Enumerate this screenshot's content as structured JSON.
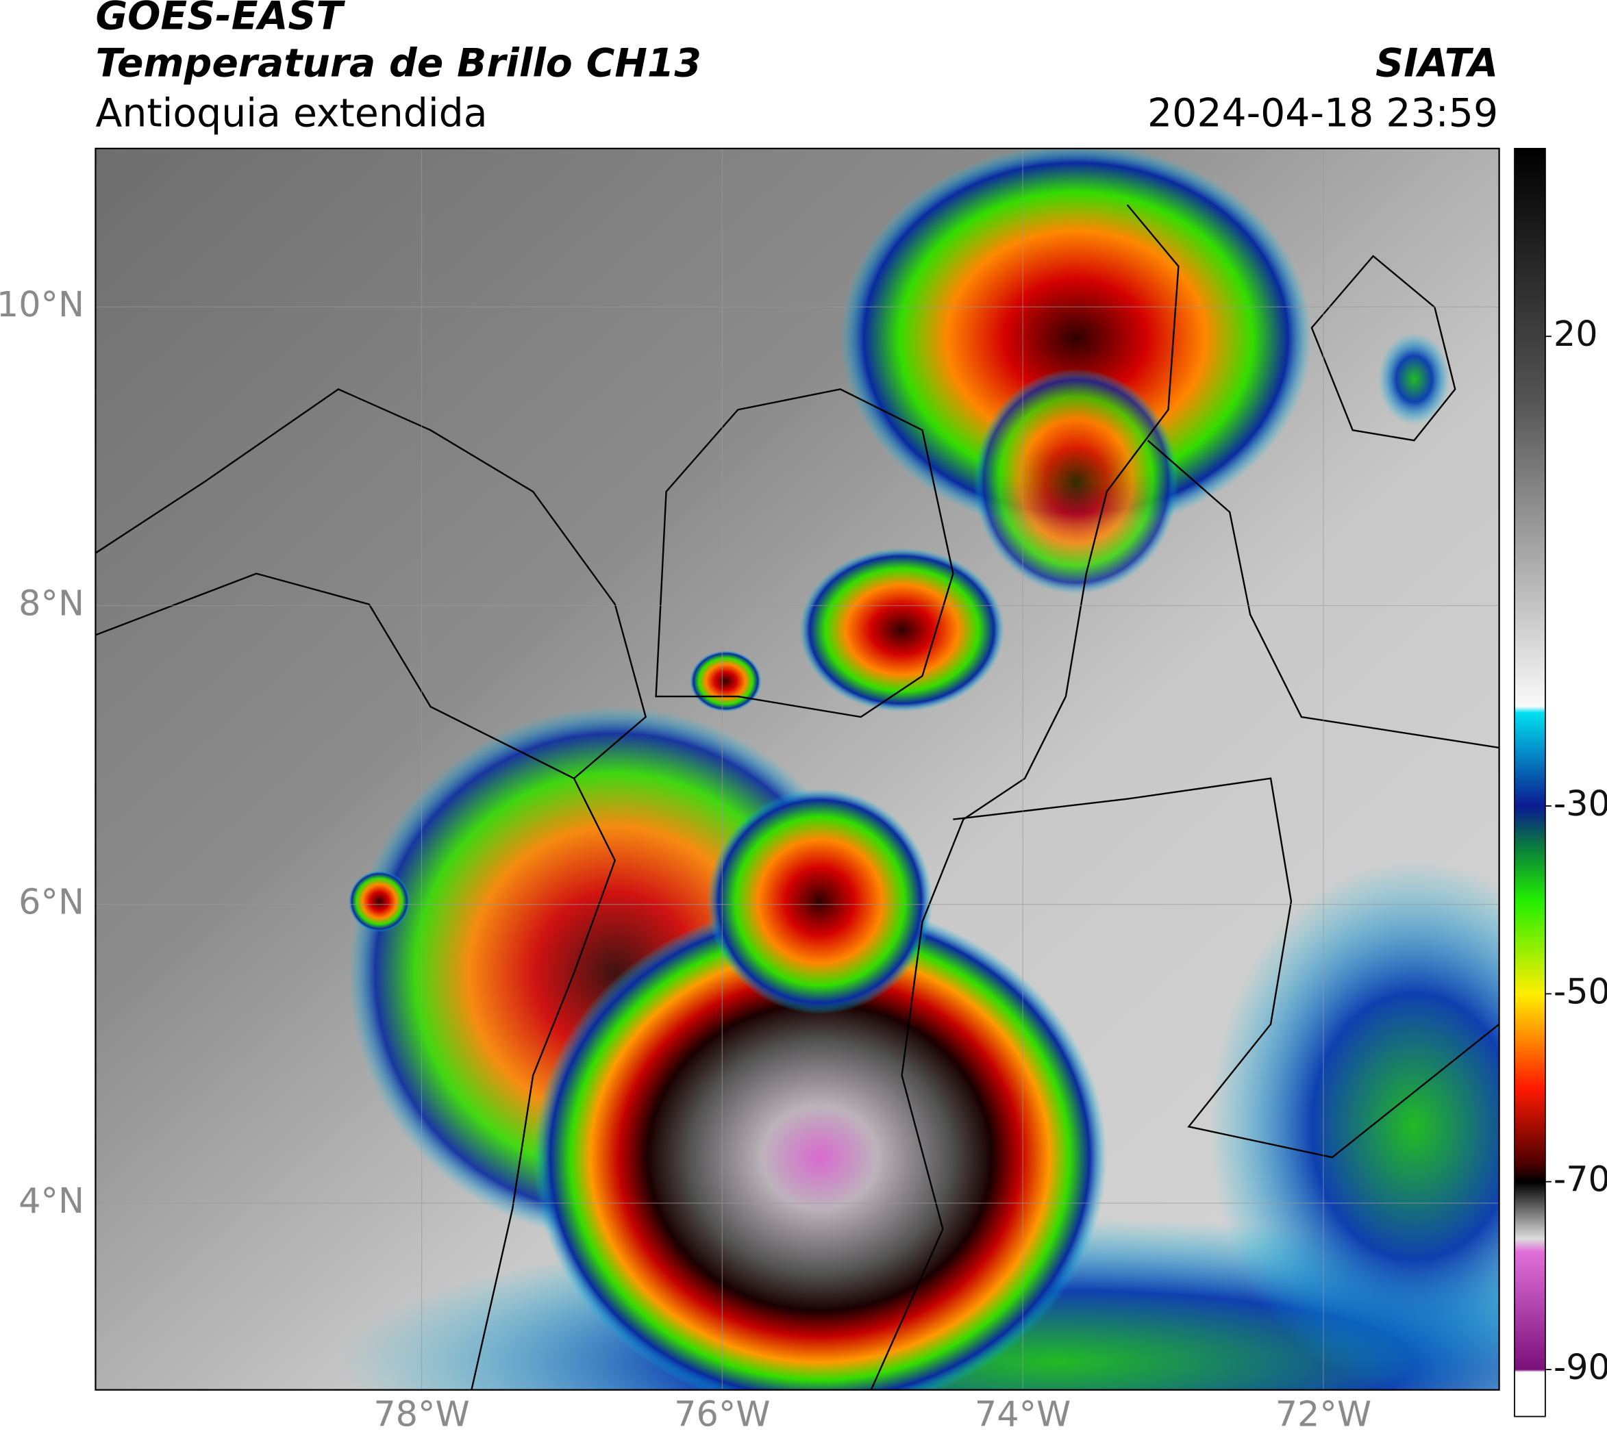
{
  "header": {
    "title": "GOES-EAST",
    "subtitle": "Temperatura de Brillo CH13",
    "region": "Antioquia extendida",
    "source": "SIATA",
    "datetime": "2024-04-18 23:59"
  },
  "map": {
    "xlim": [
      -80.17,
      -70.83
    ],
    "ylim": [
      2.75,
      11.06
    ],
    "grid": true,
    "xticks": [
      {
        "value": -78,
        "label": "78°W"
      },
      {
        "value": -76,
        "label": "76°W"
      },
      {
        "value": -74,
        "label": "74°W"
      },
      {
        "value": -72,
        "label": "72°W"
      }
    ],
    "yticks": [
      {
        "value": 4,
        "label": "4°N"
      },
      {
        "value": 6,
        "label": "6°N"
      },
      {
        "value": 8,
        "label": "8°N"
      },
      {
        "value": 10,
        "label": "10°N"
      }
    ]
  },
  "colorbar": {
    "lim": [
      -95,
      40
    ],
    "ticks": [
      -90,
      -70,
      -50,
      -30,
      20
    ]
  }
}
